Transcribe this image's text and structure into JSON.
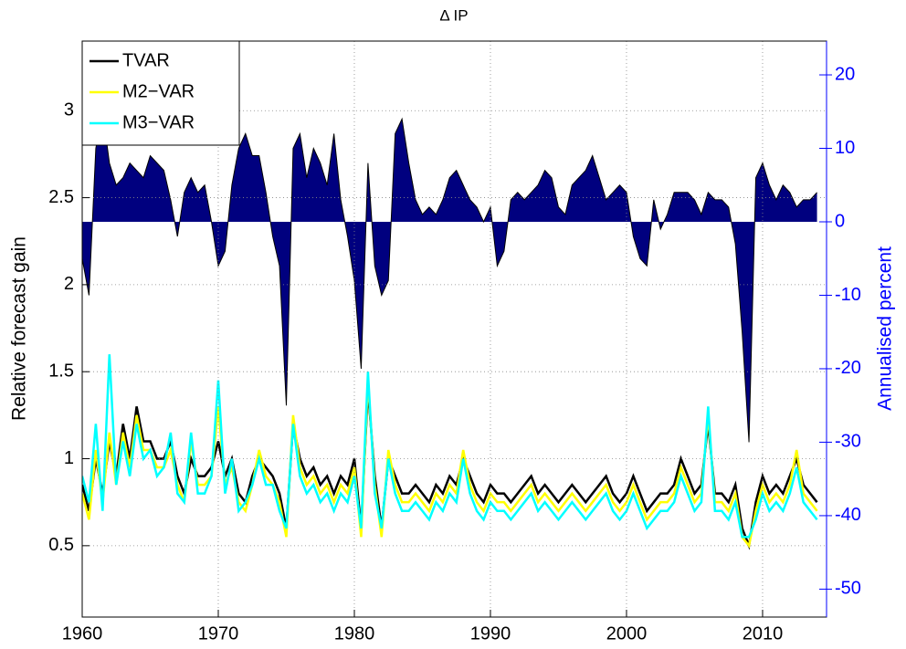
{
  "chart_data": {
    "type": "line",
    "title": "Δ IP",
    "ylabel": "Relative forecast gain",
    "y2label": "Annualised percent",
    "x": [
      1960,
      1960.5,
      1961,
      1961.5,
      1962,
      1962.5,
      1963,
      1963.5,
      1964,
      1964.5,
      1965,
      1965.5,
      1966,
      1966.5,
      1967,
      1967.5,
      1968,
      1968.5,
      1969,
      1969.5,
      1970,
      1970.5,
      1971,
      1971.5,
      1972,
      1972.5,
      1973,
      1973.5,
      1974,
      1974.5,
      1975,
      1975.5,
      1976,
      1976.5,
      1977,
      1977.5,
      1978,
      1978.5,
      1979,
      1979.5,
      1980,
      1980.5,
      1981,
      1981.5,
      1982,
      1982.5,
      1983,
      1983.5,
      1984,
      1984.5,
      1985,
      1985.5,
      1986,
      1986.5,
      1987,
      1987.5,
      1988,
      1988.5,
      1989,
      1989.5,
      1990,
      1990.5,
      1991,
      1991.5,
      1992,
      1992.5,
      1993,
      1993.5,
      1994,
      1994.5,
      1995,
      1995.5,
      1996,
      1996.5,
      1997,
      1997.5,
      1998,
      1998.5,
      1999,
      1999.5,
      2000,
      2000.5,
      2001,
      2001.5,
      2002,
      2002.5,
      2003,
      2003.5,
      2004,
      2004.5,
      2005,
      2005.5,
      2006,
      2006.5,
      2007,
      2007.5,
      2008,
      2008.5,
      2009,
      2009.5,
      2010,
      2010.5,
      2011,
      2011.5,
      2012,
      2012.5,
      2013,
      2013.5,
      2014
    ],
    "series": [
      {
        "name": "TVAR",
        "color": "#000000",
        "values": [
          0.85,
          0.7,
          1.0,
          0.8,
          1.1,
          0.9,
          1.2,
          1.0,
          1.3,
          1.1,
          1.1,
          1.0,
          1.0,
          1.1,
          0.9,
          0.8,
          1.0,
          0.9,
          0.9,
          0.95,
          1.1,
          0.9,
          1.0,
          0.8,
          0.75,
          0.9,
          1.0,
          0.95,
          0.9,
          0.8,
          0.6,
          1.2,
          1.0,
          0.9,
          0.95,
          0.85,
          0.9,
          0.8,
          0.9,
          0.85,
          1.0,
          0.6,
          1.4,
          0.9,
          0.6,
          1.0,
          0.9,
          0.8,
          0.8,
          0.85,
          0.8,
          0.75,
          0.85,
          0.8,
          0.9,
          0.85,
          1.0,
          0.9,
          0.8,
          0.75,
          0.85,
          0.8,
          0.8,
          0.75,
          0.8,
          0.85,
          0.9,
          0.8,
          0.85,
          0.8,
          0.75,
          0.8,
          0.85,
          0.8,
          0.75,
          0.8,
          0.85,
          0.9,
          0.8,
          0.75,
          0.8,
          0.9,
          0.8,
          0.7,
          0.75,
          0.8,
          0.8,
          0.85,
          1.0,
          0.9,
          0.8,
          0.85,
          1.2,
          0.8,
          0.8,
          0.75,
          0.85,
          0.6,
          0.5,
          0.75,
          0.9,
          0.8,
          0.85,
          0.8,
          0.9,
          1.0,
          0.85,
          0.8,
          0.75
        ]
      },
      {
        "name": "M2−VAR",
        "color": "#ffff00",
        "values": [
          0.8,
          0.65,
          1.05,
          0.75,
          1.15,
          0.85,
          1.15,
          0.95,
          1.25,
          1.05,
          1.05,
          0.95,
          0.95,
          1.05,
          0.85,
          0.75,
          1.1,
          0.85,
          0.85,
          0.9,
          1.3,
          0.85,
          0.95,
          0.75,
          0.7,
          0.85,
          1.05,
          0.9,
          0.85,
          0.75,
          0.55,
          1.25,
          0.95,
          0.85,
          0.9,
          0.8,
          0.85,
          0.75,
          0.85,
          0.8,
          0.95,
          0.55,
          1.45,
          0.85,
          0.55,
          1.05,
          0.85,
          0.75,
          0.75,
          0.8,
          0.75,
          0.7,
          0.8,
          0.75,
          0.85,
          0.8,
          1.05,
          0.85,
          0.75,
          0.7,
          0.8,
          0.75,
          0.75,
          0.7,
          0.75,
          0.8,
          0.85,
          0.75,
          0.8,
          0.75,
          0.7,
          0.75,
          0.8,
          0.75,
          0.7,
          0.75,
          0.8,
          0.85,
          0.75,
          0.7,
          0.75,
          0.85,
          0.75,
          0.65,
          0.7,
          0.75,
          0.75,
          0.8,
          0.95,
          0.85,
          0.75,
          0.8,
          1.25,
          0.75,
          0.75,
          0.7,
          0.8,
          0.55,
          0.5,
          0.7,
          0.85,
          0.75,
          0.8,
          0.75,
          0.85,
          1.05,
          0.8,
          0.75,
          0.7
        ]
      },
      {
        "name": "M3−VAR",
        "color": "#00ffff",
        "values": [
          0.9,
          0.75,
          1.2,
          0.7,
          1.6,
          0.85,
          1.1,
          0.9,
          1.2,
          1.0,
          1.05,
          0.9,
          0.95,
          1.15,
          0.8,
          0.75,
          1.15,
          0.8,
          0.8,
          0.9,
          1.45,
          0.8,
          1.0,
          0.7,
          0.75,
          0.85,
          1.0,
          0.85,
          0.85,
          0.7,
          0.6,
          1.2,
          0.9,
          0.8,
          0.85,
          0.75,
          0.8,
          0.7,
          0.8,
          0.75,
          0.9,
          0.6,
          1.5,
          0.8,
          0.6,
          1.0,
          0.8,
          0.7,
          0.7,
          0.75,
          0.7,
          0.65,
          0.75,
          0.7,
          0.8,
          0.75,
          1.0,
          0.8,
          0.7,
          0.65,
          0.75,
          0.7,
          0.7,
          0.65,
          0.7,
          0.75,
          0.8,
          0.7,
          0.75,
          0.7,
          0.65,
          0.7,
          0.75,
          0.7,
          0.65,
          0.7,
          0.75,
          0.8,
          0.7,
          0.65,
          0.7,
          0.8,
          0.7,
          0.6,
          0.65,
          0.7,
          0.7,
          0.75,
          0.9,
          0.8,
          0.7,
          0.75,
          1.3,
          0.7,
          0.7,
          0.65,
          0.75,
          0.55,
          0.55,
          0.65,
          0.8,
          0.7,
          0.75,
          0.7,
          0.8,
          0.95,
          0.75,
          0.7,
          0.65
        ]
      }
    ],
    "area": {
      "axis": "y2",
      "color": "#00007f",
      "line_color": "#000000",
      "values": [
        -5,
        -10,
        10,
        15,
        8,
        5,
        6,
        8,
        7,
        6,
        9,
        8,
        7,
        3,
        -2,
        4,
        6,
        4,
        5,
        0,
        -6,
        -4,
        5,
        10,
        12,
        9,
        9,
        4,
        -2,
        -6,
        -25,
        10,
        12,
        6,
        10,
        8,
        5,
        12,
        3,
        -2,
        -8,
        -20,
        8,
        -6,
        -10,
        -8,
        12,
        14,
        8,
        3,
        1,
        2,
        1,
        3,
        6,
        7,
        5,
        3,
        2,
        0,
        2,
        -6,
        -4,
        3,
        4,
        3,
        4,
        5,
        7,
        6,
        2,
        1,
        5,
        6,
        7,
        9,
        6,
        3,
        4,
        5,
        4,
        -2,
        -5,
        -6,
        3,
        -1,
        1,
        4,
        4,
        4,
        3,
        1,
        4,
        3,
        3,
        2,
        -3,
        -15,
        -30,
        6,
        8,
        5,
        3,
        5,
        4,
        2,
        3,
        3,
        4
      ]
    },
    "xlim": [
      1960,
      2014.7
    ],
    "xticks": [
      1960,
      1970,
      1980,
      1990,
      2000,
      2010
    ],
    "ylim": [
      0.09,
      3.4
    ],
    "yticks": [
      0.5,
      1,
      1.5,
      2,
      2.5,
      3
    ],
    "y2lim": [
      -53.8,
      24.6
    ],
    "y2ticks": [
      -50,
      -40,
      -30,
      -20,
      -10,
      0,
      10,
      20
    ],
    "y2color": "#0000ff",
    "grid": true,
    "legend": "upper left"
  }
}
